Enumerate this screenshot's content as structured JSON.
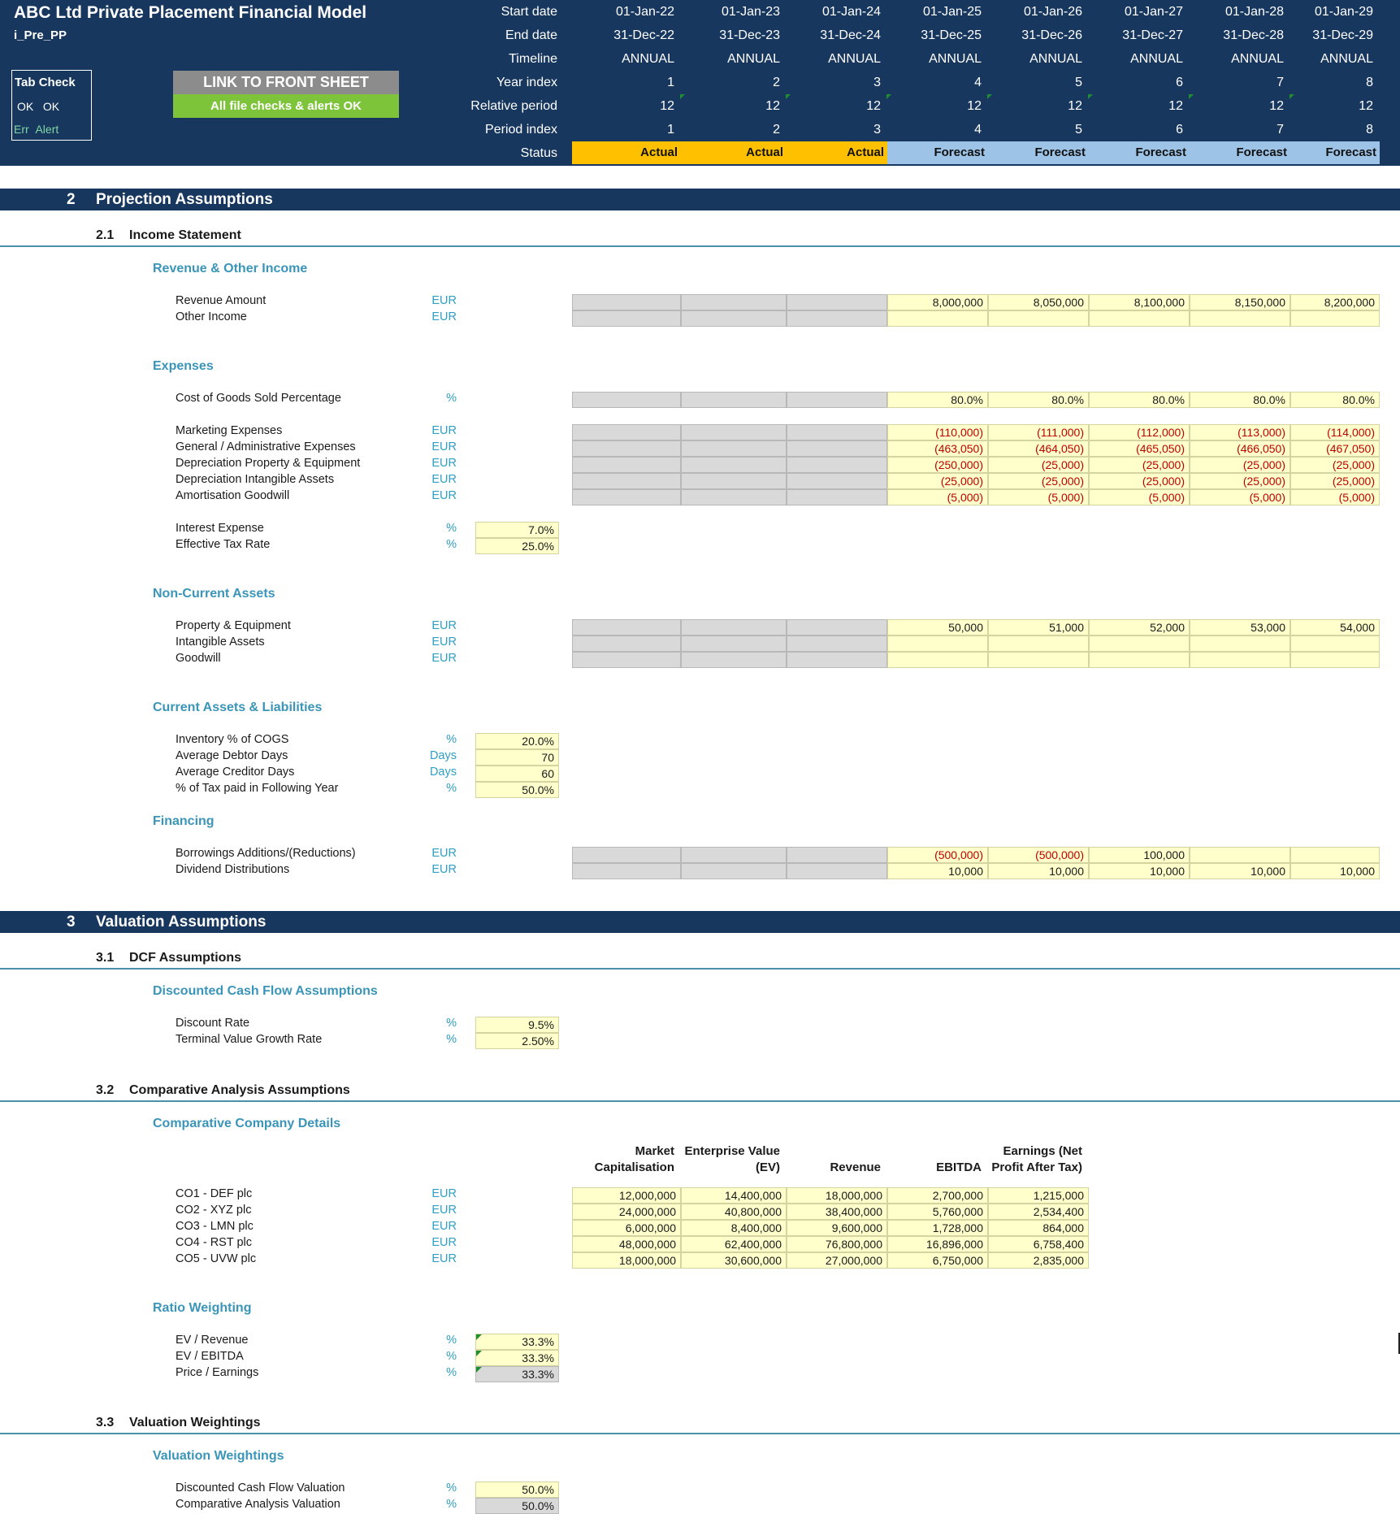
{
  "header": {
    "title": "ABC Ltd Private Placement Financial Model",
    "sheet_code": "i_Pre_PP",
    "tab_check": {
      "title": "Tab Check",
      "row2": [
        "OK",
        "OK"
      ],
      "row3": [
        "Err",
        "Alert"
      ]
    },
    "link_button": "LINK TO FRONT SHEET",
    "checks_status": "All file checks & alerts OK",
    "row_labels": [
      "Start date",
      "End date",
      "Timeline",
      "Year index",
      "Relative period",
      "Period index",
      "Status"
    ],
    "start_dates": [
      "01-Jan-22",
      "01-Jan-23",
      "01-Jan-24",
      "01-Jan-25",
      "01-Jan-26",
      "01-Jan-27",
      "01-Jan-28",
      "01-Jan-29"
    ],
    "end_dates": [
      "31-Dec-22",
      "31-Dec-23",
      "31-Dec-24",
      "31-Dec-25",
      "31-Dec-26",
      "31-Dec-27",
      "31-Dec-28",
      "31-Dec-29"
    ],
    "timeline": [
      "ANNUAL",
      "ANNUAL",
      "ANNUAL",
      "ANNUAL",
      "ANNUAL",
      "ANNUAL",
      "ANNUAL",
      "ANNUAL"
    ],
    "year_index": [
      "1",
      "2",
      "3",
      "4",
      "5",
      "6",
      "7",
      "8"
    ],
    "relative_period": [
      "12",
      "12",
      "12",
      "12",
      "12",
      "12",
      "12",
      "12"
    ],
    "period_index": [
      "1",
      "2",
      "3",
      "4",
      "5",
      "6",
      "7",
      "8"
    ],
    "status": [
      "Actual",
      "Actual",
      "Actual",
      "Forecast",
      "Forecast",
      "Forecast",
      "Forecast",
      "Forecast"
    ]
  },
  "colors": {
    "header_bg": "#17375e",
    "actual": "#ffc000",
    "forecast": "#9dc3e6",
    "input_yellow": "#ffffcc",
    "locked_grey": "#d9d9d9",
    "negative": "#c00000",
    "group_title": "#3a95b8"
  },
  "section2": {
    "number": "2",
    "title": "Projection Assumptions",
    "sub21": {
      "number": "2.1",
      "title": "Income Statement"
    },
    "revenue": {
      "title": "Revenue & Other Income",
      "rows": [
        {
          "label": "Revenue Amount",
          "unit": "EUR",
          "values": [
            "8,000,000",
            "8,050,000",
            "8,100,000",
            "8,150,000",
            "8,200,000"
          ]
        },
        {
          "label": "Other Income",
          "unit": "EUR",
          "values": [
            "",
            "",
            "",
            "",
            ""
          ]
        }
      ]
    },
    "expenses": {
      "title": "Expenses",
      "cogs": {
        "label": "Cost of Goods Sold Percentage",
        "unit": "%",
        "values": [
          "80.0%",
          "80.0%",
          "80.0%",
          "80.0%",
          "80.0%"
        ]
      },
      "rows": [
        {
          "label": "Marketing Expenses",
          "unit": "EUR",
          "values": [
            "(110,000)",
            "(111,000)",
            "(112,000)",
            "(113,000)",
            "(114,000)"
          ]
        },
        {
          "label": "General / Administrative Expenses",
          "unit": "EUR",
          "values": [
            "(463,050)",
            "(464,050)",
            "(465,050)",
            "(466,050)",
            "(467,050)"
          ]
        },
        {
          "label": "Depreciation Property & Equipment",
          "unit": "EUR",
          "values": [
            "(250,000)",
            "(25,000)",
            "(25,000)",
            "(25,000)",
            "(25,000)"
          ]
        },
        {
          "label": "Depreciation Intangible Assets",
          "unit": "EUR",
          "values": [
            "(25,000)",
            "(25,000)",
            "(25,000)",
            "(25,000)",
            "(25,000)"
          ]
        },
        {
          "label": "Amortisation Goodwill",
          "unit": "EUR",
          "values": [
            "(5,000)",
            "(5,000)",
            "(5,000)",
            "(5,000)",
            "(5,000)"
          ]
        }
      ],
      "single": [
        {
          "label": "Interest Expense",
          "unit": "%",
          "value": "7.0%"
        },
        {
          "label": "Effective Tax Rate",
          "unit": "%",
          "value": "25.0%"
        }
      ]
    },
    "noncurrent": {
      "title": "Non-Current Assets",
      "rows": [
        {
          "label": "Property & Equipment",
          "unit": "EUR",
          "values": [
            "50,000",
            "51,000",
            "52,000",
            "53,000",
            "54,000"
          ]
        },
        {
          "label": "Intangible Assets",
          "unit": "EUR",
          "values": [
            "",
            "",
            "",
            "",
            ""
          ]
        },
        {
          "label": "Goodwill",
          "unit": "EUR",
          "values": [
            "",
            "",
            "",
            "",
            ""
          ]
        }
      ]
    },
    "current": {
      "title": "Current Assets & Liabilities",
      "rows": [
        {
          "label": "Inventory % of COGS",
          "unit": "%",
          "value": "20.0%"
        },
        {
          "label": "Average Debtor Days",
          "unit": "Days",
          "value": "70"
        },
        {
          "label": "Average Creditor Days",
          "unit": "Days",
          "value": "60"
        },
        {
          "label": "% of Tax paid in Following Year",
          "unit": "%",
          "value": "50.0%"
        }
      ]
    },
    "financing": {
      "title": "Financing",
      "rows": [
        {
          "label": "Borrowings Additions/(Reductions)",
          "unit": "EUR",
          "values": [
            "(500,000)",
            "(500,000)",
            "100,000",
            "",
            ""
          ]
        },
        {
          "label": "Dividend Distributions",
          "unit": "EUR",
          "values": [
            "10,000",
            "10,000",
            "10,000",
            "10,000",
            "10,000"
          ]
        }
      ]
    }
  },
  "section3": {
    "number": "3",
    "title": "Valuation Assumptions",
    "sub31": {
      "number": "3.1",
      "title": "DCF Assumptions"
    },
    "dcf": {
      "title": "Discounted Cash Flow Assumptions",
      "rows": [
        {
          "label": "Discount Rate",
          "unit": "%",
          "value": "9.5%"
        },
        {
          "label": "Terminal Value Growth Rate",
          "unit": "%",
          "value": "2.50%"
        }
      ]
    },
    "sub32": {
      "number": "3.2",
      "title": "Comparative Analysis Assumptions"
    },
    "comparative": {
      "title": "Comparative Company Details",
      "columns": [
        [
          "Market",
          "Capitalisation"
        ],
        [
          "Enterprise Value",
          "(EV)"
        ],
        [
          "",
          "Revenue"
        ],
        [
          "",
          "EBITDA"
        ],
        [
          "Earnings (Net",
          "Profit After Tax)"
        ]
      ],
      "rows": [
        {
          "label": "CO1 - DEF plc",
          "unit": "EUR",
          "values": [
            "12,000,000",
            "14,400,000",
            "18,000,000",
            "2,700,000",
            "1,215,000"
          ]
        },
        {
          "label": "CO2 - XYZ plc",
          "unit": "EUR",
          "values": [
            "24,000,000",
            "40,800,000",
            "38,400,000",
            "5,760,000",
            "2,534,400"
          ]
        },
        {
          "label": "CO3 - LMN plc",
          "unit": "EUR",
          "values": [
            "6,000,000",
            "8,400,000",
            "9,600,000",
            "1,728,000",
            "864,000"
          ]
        },
        {
          "label": "CO4 - RST plc",
          "unit": "EUR",
          "values": [
            "48,000,000",
            "62,400,000",
            "76,800,000",
            "16,896,000",
            "6,758,400"
          ]
        },
        {
          "label": "CO5 - UVW plc",
          "unit": "EUR",
          "values": [
            "18,000,000",
            "30,600,000",
            "27,000,000",
            "6,750,000",
            "2,835,000"
          ]
        }
      ]
    },
    "ratio": {
      "title": "Ratio Weighting",
      "rows": [
        {
          "label": "EV / Revenue",
          "unit": "%",
          "value": "33.3%"
        },
        {
          "label": "EV / EBITDA",
          "unit": "%",
          "value": "33.3%"
        },
        {
          "label": "Price / Earnings",
          "unit": "%",
          "value": "33.3%"
        }
      ]
    },
    "sub33": {
      "number": "3.3",
      "title": "Valuation Weightings"
    },
    "weightings": {
      "title": "Valuation Weightings",
      "rows": [
        {
          "label": "Discounted Cash Flow Valuation",
          "unit": "%",
          "value": "50.0%"
        },
        {
          "label": "Comparative Analysis Valuation",
          "unit": "%",
          "value": "50.0%"
        }
      ]
    }
  }
}
